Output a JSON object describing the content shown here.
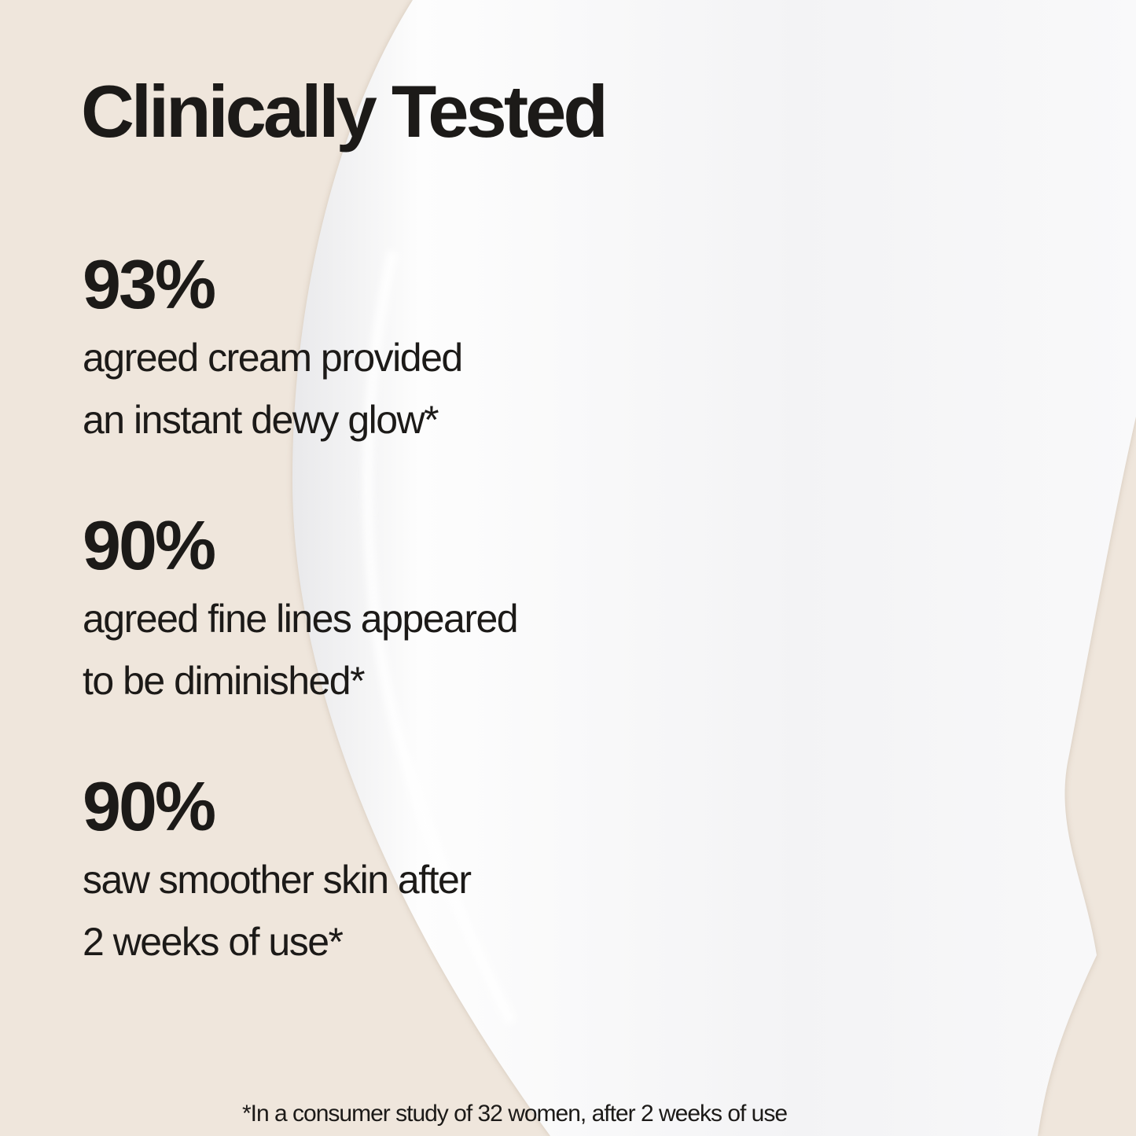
{
  "title": "Clinically Tested",
  "stats": [
    {
      "value": "93%",
      "lines": [
        "agreed cream provided",
        "an instant dewy glow*"
      ]
    },
    {
      "value": "90%",
      "lines": [
        "agreed fine lines appeared",
        "to be diminished*"
      ]
    },
    {
      "value": "90%",
      "lines": [
        "saw smoother skin after",
        "2 weeks of use*"
      ]
    }
  ],
  "footnote": "*In a consumer study of 32 women, after 2 weeks of use",
  "colors": {
    "background": "#efe6dc",
    "cream": "#f7f7f8",
    "text": "#1c1a18"
  }
}
